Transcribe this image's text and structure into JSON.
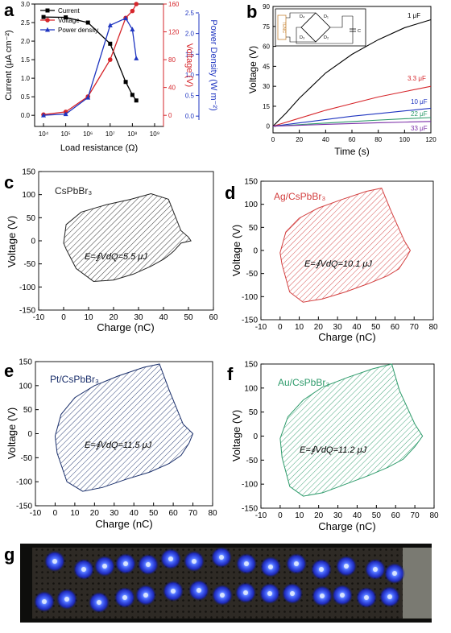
{
  "panel_labels": [
    "a",
    "b",
    "c",
    "d",
    "e",
    "f",
    "g"
  ],
  "chart_data": [
    {
      "id": "a",
      "type": "line",
      "xlabel": "Load resistance (Ω)",
      "x_scale": "log",
      "x_ticks": [
        "10⁴",
        "10⁵",
        "10⁶",
        "10⁷",
        "10⁸",
        "10⁹"
      ],
      "y_left_label": "Current (μA cm⁻²)",
      "y_left_ticks": [
        "0.0",
        "0.5",
        "1.0",
        "1.5",
        "2.0",
        "2.5",
        "3.0"
      ],
      "y_right_label": "Voltage (V)",
      "y_right_ticks": [
        "0",
        "40",
        "80",
        "120",
        "160"
      ],
      "y_far_right_label": "Power Density (W m⁻²)",
      "y_far_right_ticks": [
        "0.0",
        "0.5",
        "1.0",
        "1.5",
        "2.0",
        "2.5"
      ],
      "legend": "top-left",
      "x": [
        10000,
        100000,
        1000000,
        10000000,
        50000000,
        100000000,
        150000000
      ],
      "series": [
        {
          "name": "Current",
          "color": "#000000",
          "axis": "left",
          "marker": "square",
          "values": [
            2.65,
            2.64,
            2.5,
            1.93,
            0.9,
            0.55,
            0.4
          ]
        },
        {
          "name": "Voltage",
          "color": "#d6262b",
          "axis": "right",
          "marker": "circle",
          "values": [
            1,
            5,
            27,
            80,
            140,
            150,
            160
          ]
        },
        {
          "name": "Power density",
          "color": "#1f35c0",
          "axis": "far-right",
          "marker": "triangle",
          "values": [
            0.02,
            0.05,
            0.45,
            2.2,
            2.37,
            2.1,
            1.4
          ]
        }
      ]
    },
    {
      "id": "b",
      "type": "line",
      "xlabel": "Time (s)",
      "ylabel": "Voltage (V)",
      "xlim": [
        0,
        120
      ],
      "ylim": [
        -5,
        90
      ],
      "x_ticks": [
        "0",
        "20",
        "40",
        "60",
        "80",
        "100",
        "120"
      ],
      "y_ticks": [
        "0",
        "15",
        "30",
        "45",
        "60",
        "75",
        "90"
      ],
      "series": [
        {
          "name": "1 μF",
          "color": "#000000",
          "x": [
            0,
            10,
            20,
            40,
            60,
            80,
            100,
            120
          ],
          "values": [
            0,
            10,
            21,
            40,
            54,
            65,
            74,
            80
          ]
        },
        {
          "name": "3.3 μF",
          "color": "#d6262b",
          "x": [
            0,
            20,
            40,
            60,
            80,
            100,
            120
          ],
          "values": [
            0,
            6,
            12,
            17,
            22,
            26,
            30
          ]
        },
        {
          "name": "10 μF",
          "color": "#1f35c0",
          "x": [
            0,
            20,
            40,
            60,
            80,
            100,
            120
          ],
          "values": [
            0,
            2.5,
            5,
            7.5,
            9.5,
            11.5,
            13.5
          ]
        },
        {
          "name": "22 μF",
          "color": "#2e9b6b",
          "x": [
            0,
            20,
            40,
            60,
            80,
            100,
            120
          ],
          "values": [
            0,
            1.2,
            2.4,
            3.5,
            4.6,
            5.6,
            6.5
          ]
        },
        {
          "name": "33 μF",
          "color": "#7b2fa8",
          "x": [
            0,
            20,
            40,
            60,
            80,
            100,
            120
          ],
          "values": [
            0,
            0.7,
            1.4,
            2.0,
            2.6,
            3.1,
            3.6
          ]
        }
      ],
      "inset_labels": [
        "D₄",
        "D₁",
        "D₃",
        "D₂",
        "TENG",
        "C"
      ]
    },
    {
      "id": "c",
      "type": "area",
      "title": "CsPbBr₃",
      "annotation": "E=∮VdQ=5.5 μJ",
      "color": "#222222",
      "xlabel": "Charge (nC)",
      "ylabel": "Voltage (V)",
      "xlim": [
        -10,
        60
      ],
      "ylim": [
        -150,
        150
      ],
      "x_ticks": [
        "-10",
        "0",
        "10",
        "20",
        "30",
        "40",
        "50",
        "60"
      ],
      "y_ticks": [
        "-150",
        "-100",
        "-50",
        "0",
        "50",
        "100",
        "150"
      ],
      "x": [
        0,
        1,
        5,
        12,
        20,
        28,
        35,
        40,
        42,
        44,
        47,
        51,
        50,
        47,
        42,
        35,
        27,
        17,
        7,
        1,
        0
      ],
      "values": [
        -5,
        -18,
        -60,
        -88,
        -85,
        -72,
        -55,
        -40,
        -32,
        -23,
        -5,
        0,
        8,
        22,
        90,
        102,
        90,
        78,
        62,
        35,
        -5
      ]
    },
    {
      "id": "d",
      "type": "area",
      "title": "Ag/CsPbBr₃",
      "annotation": "E=∮VdQ=10.1 μJ",
      "color": "#d33f3f",
      "xlabel": "Charge (nC)",
      "ylabel": "Voltage (V)",
      "xlim": [
        -10,
        80
      ],
      "ylim": [
        -150,
        150
      ],
      "x_ticks": [
        "-10",
        "0",
        "10",
        "20",
        "30",
        "40",
        "50",
        "60",
        "70",
        "80"
      ],
      "y_ticks": [
        "-150",
        "-100",
        "-50",
        "0",
        "50",
        "100",
        "150"
      ],
      "x": [
        0,
        1,
        5,
        12,
        22,
        34,
        46,
        56,
        62,
        66,
        68,
        65,
        58,
        53,
        45,
        32,
        20,
        10,
        3,
        0
      ],
      "values": [
        -5,
        -30,
        -90,
        -112,
        -105,
        -90,
        -72,
        -55,
        -40,
        -15,
        0,
        20,
        85,
        135,
        128,
        110,
        92,
        70,
        40,
        -5
      ]
    },
    {
      "id": "e",
      "type": "area",
      "title": "Pt/CsPbBr₃",
      "annotation": "E=∮VdQ=11.5 μJ",
      "color": "#1a2f6b",
      "xlabel": "Charge (nC)",
      "ylabel": "Voltage (V)",
      "xlim": [
        -10,
        80
      ],
      "ylim": [
        -150,
        150
      ],
      "x_ticks": [
        "-10",
        "0",
        "10",
        "20",
        "30",
        "40",
        "50",
        "60",
        "70",
        "80"
      ],
      "y_ticks": [
        "-150",
        "-100",
        "-50",
        "0",
        "50",
        "100",
        "150"
      ],
      "x": [
        0,
        1,
        6,
        14,
        24,
        36,
        48,
        58,
        64,
        68,
        70,
        65,
        58,
        53,
        45,
        32,
        20,
        10,
        3,
        0
      ],
      "values": [
        -5,
        -40,
        -100,
        -120,
        -112,
        -95,
        -80,
        -62,
        -45,
        -20,
        0,
        20,
        90,
        145,
        138,
        120,
        100,
        75,
        40,
        -5
      ]
    },
    {
      "id": "f",
      "type": "area",
      "title": "Au/CsPbBr₃",
      "annotation": "E=∮VdQ=11.2 μJ",
      "color": "#2e9b6b",
      "xlabel": "Charge (nC)",
      "ylabel": "Voltage (V)",
      "xlim": [
        -10,
        80
      ],
      "ylim": [
        -150,
        150
      ],
      "x_ticks": [
        "-10",
        "0",
        "10",
        "20",
        "30",
        "40",
        "50",
        "60",
        "70",
        "80"
      ],
      "y_ticks": [
        "-150",
        "-100",
        "-50",
        "0",
        "50",
        "100",
        "150"
      ],
      "x": [
        0,
        1,
        5,
        12,
        22,
        34,
        46,
        56,
        64,
        70,
        74,
        70,
        62,
        58,
        48,
        35,
        22,
        12,
        4,
        0
      ],
      "values": [
        -5,
        -45,
        -105,
        -125,
        -118,
        -100,
        -82,
        -65,
        -48,
        -22,
        0,
        25,
        95,
        150,
        140,
        122,
        102,
        75,
        40,
        -5
      ]
    }
  ]
}
